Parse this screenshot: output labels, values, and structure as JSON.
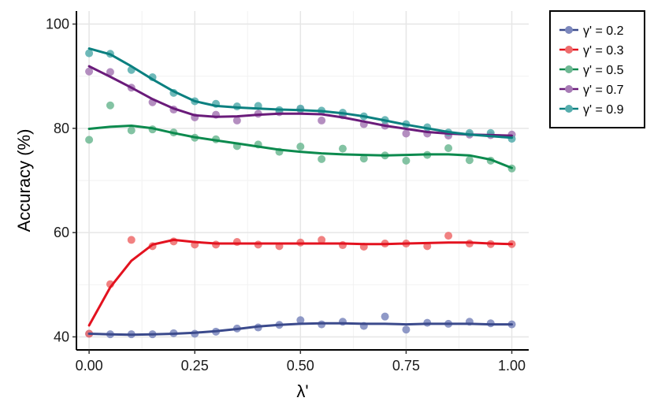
{
  "chart_data": {
    "type": "scatter",
    "title": "",
    "xlabel": "λ'",
    "ylabel": "Accuracy (%)",
    "xlim": [
      -0.03,
      1.04
    ],
    "ylim": [
      37.5,
      102.5
    ],
    "x_ticks": [
      0,
      0.25,
      0.5,
      0.75,
      1
    ],
    "x_tick_labels": [
      "0.00",
      "0.25",
      "0.50",
      "0.75",
      "1.00"
    ],
    "y_ticks": [
      40,
      60,
      80,
      100
    ],
    "y_tick_labels": [
      "40",
      "60",
      "80",
      "100"
    ],
    "grid": true,
    "legend_position": "right-top",
    "x": [
      0,
      0.05,
      0.1,
      0.15,
      0.2,
      0.25,
      0.3,
      0.35,
      0.4,
      0.45,
      0.5,
      0.55,
      0.6,
      0.65,
      0.7,
      0.75,
      0.8,
      0.85,
      0.9,
      0.95,
      1.0
    ],
    "series": [
      {
        "name": "γ' = 0.2",
        "color": "#3b4a8c",
        "point_color": "#7b87bd",
        "points": [
          40.6,
          40.5,
          40.5,
          40.5,
          40.7,
          40.6,
          41.0,
          41.6,
          41.8,
          42.3,
          43.2,
          42.4,
          42.9,
          42.1,
          43.9,
          41.4,
          42.7,
          42.5,
          42.9,
          42.6,
          42.4
        ],
        "fit": [
          40.6,
          40.5,
          40.4,
          40.5,
          40.6,
          40.8,
          41.1,
          41.5,
          42.0,
          42.3,
          42.5,
          42.6,
          42.6,
          42.5,
          42.5,
          42.4,
          42.5,
          42.5,
          42.5,
          42.4,
          42.4
        ]
      },
      {
        "name": "γ' = 0.3",
        "color": "#e3121f",
        "point_color": "#ee6b6b",
        "points": [
          40.6,
          50.1,
          58.6,
          57.4,
          58.3,
          57.7,
          57.7,
          58.2,
          57.7,
          57.4,
          58.1,
          58.6,
          57.6,
          57.3,
          57.9,
          57.9,
          57.4,
          59.4,
          57.9,
          57.8,
          57.8
        ],
        "fit": [
          42.2,
          49.5,
          54.6,
          57.7,
          58.6,
          58.2,
          57.9,
          57.9,
          57.9,
          57.9,
          57.9,
          57.9,
          57.9,
          57.8,
          57.8,
          57.9,
          58.0,
          58.1,
          58.1,
          57.9,
          57.8
        ]
      },
      {
        "name": "γ' = 0.5",
        "color": "#0c8a4e",
        "point_color": "#6db893",
        "points": [
          77.8,
          84.4,
          79.6,
          79.8,
          79.2,
          78.2,
          77.9,
          76.6,
          76.9,
          75.5,
          76.5,
          74.1,
          76.1,
          74.2,
          74.8,
          73.8,
          74.9,
          76.2,
          73.9,
          73.8,
          72.3
        ],
        "fit": [
          79.9,
          80.3,
          80.5,
          80.0,
          79.1,
          78.3,
          77.7,
          77.1,
          76.5,
          75.9,
          75.5,
          75.2,
          75.0,
          74.9,
          74.8,
          74.9,
          75.0,
          75.0,
          74.8,
          74.0,
          72.4
        ]
      },
      {
        "name": "γ' = 0.7",
        "color": "#6a1b7a",
        "point_color": "#a77ab5",
        "points": [
          90.9,
          90.8,
          87.8,
          85.0,
          83.6,
          82.1,
          82.6,
          81.5,
          82.8,
          83.1,
          83.6,
          81.5,
          82.5,
          80.8,
          80.5,
          79.0,
          79.0,
          78.6,
          78.8,
          78.7,
          78.8
        ],
        "fit": [
          91.9,
          89.9,
          87.8,
          85.6,
          83.8,
          82.5,
          82.2,
          82.3,
          82.6,
          82.8,
          82.8,
          82.7,
          82.1,
          81.3,
          80.5,
          79.9,
          79.3,
          79.0,
          78.8,
          78.7,
          78.6
        ]
      },
      {
        "name": "γ' = 0.9",
        "color": "#0b8080",
        "point_color": "#55adad",
        "points": [
          94.4,
          94.3,
          91.2,
          89.8,
          86.8,
          85.2,
          84.7,
          84.2,
          84.3,
          83.5,
          83.8,
          83.4,
          83.0,
          82.3,
          81.6,
          80.8,
          80.2,
          79.2,
          79.1,
          79.1,
          78.0
        ],
        "fit": [
          95.3,
          94.2,
          91.9,
          89.4,
          87.1,
          85.2,
          84.3,
          84.0,
          83.8,
          83.6,
          83.5,
          83.3,
          82.9,
          82.3,
          81.5,
          80.7,
          80.0,
          79.3,
          78.8,
          78.5,
          78.2
        ]
      }
    ]
  }
}
